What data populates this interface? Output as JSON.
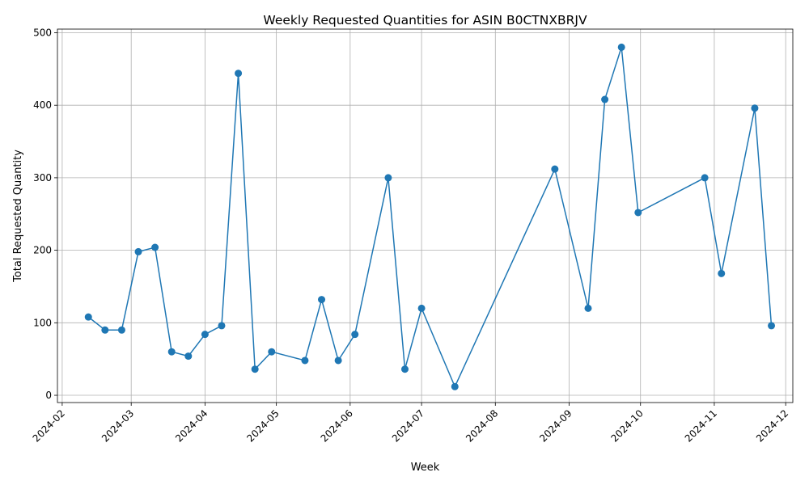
{
  "chart_data": {
    "type": "line",
    "title": "Weekly Requested Quantities for ASIN B0CTNXBRJV",
    "xlabel": "Week",
    "ylabel": "Total Requested Quantity",
    "x_type": "date",
    "xlim": [
      "2024-01-30",
      "2024-12-04"
    ],
    "ylim": [
      -10,
      505
    ],
    "x_ticks": [
      "2024-02-01",
      "2024-03-01",
      "2024-04-01",
      "2024-05-01",
      "2024-06-01",
      "2024-07-01",
      "2024-08-01",
      "2024-09-01",
      "2024-10-01",
      "2024-11-01",
      "2024-12-01"
    ],
    "x_tick_labels": [
      "2024-02",
      "2024-03",
      "2024-04",
      "2024-05",
      "2024-06",
      "2024-07",
      "2024-08",
      "2024-09",
      "2024-10",
      "2024-11",
      "2024-12"
    ],
    "y_ticks": [
      0,
      100,
      200,
      300,
      400,
      500
    ],
    "grid": true,
    "marker": "circle",
    "color": "#1f77b4",
    "series": [
      {
        "x": [
          "2024-02-12",
          "2024-02-19",
          "2024-02-26",
          "2024-03-04",
          "2024-03-11",
          "2024-03-18",
          "2024-03-25",
          "2024-04-01",
          "2024-04-08",
          "2024-04-15",
          "2024-04-22",
          "2024-04-29",
          "2024-05-13",
          "2024-05-20",
          "2024-05-27",
          "2024-06-03",
          "2024-06-17",
          "2024-06-24",
          "2024-07-01",
          "2024-07-15",
          "2024-08-26",
          "2024-09-09",
          "2024-09-16",
          "2024-09-23",
          "2024-09-30",
          "2024-10-28",
          "2024-11-04",
          "2024-11-18",
          "2024-11-25"
        ],
        "values": [
          108,
          90,
          90,
          198,
          204,
          60,
          54,
          84,
          96,
          444,
          36,
          60,
          48,
          132,
          48,
          84,
          300,
          36,
          120,
          12,
          312,
          120,
          408,
          480,
          252,
          300,
          168,
          396,
          96
        ]
      }
    ]
  }
}
